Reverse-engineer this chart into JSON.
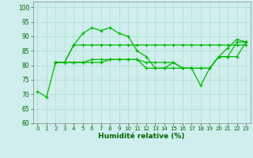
{
  "xlabel": "Humidité relative (%)",
  "xlim": [
    -0.5,
    23.5
  ],
  "ylim": [
    60,
    102
  ],
  "yticks": [
    60,
    65,
    70,
    75,
    80,
    85,
    90,
    95,
    100
  ],
  "xticks": [
    0,
    1,
    2,
    3,
    4,
    5,
    6,
    7,
    8,
    9,
    10,
    11,
    12,
    13,
    14,
    15,
    16,
    17,
    18,
    19,
    20,
    21,
    22,
    23
  ],
  "bg_color": "#d0eeee",
  "grid_color": "#aaddcc",
  "line_color": "#00bb00",
  "line1_x": [
    0,
    1,
    2,
    3,
    4,
    5,
    6,
    7,
    8,
    9,
    10,
    11,
    12,
    13,
    14,
    15,
    16,
    17,
    18,
    19,
    20,
    21,
    22,
    23
  ],
  "line1_y": [
    71,
    69,
    81,
    81,
    87,
    91,
    93,
    92,
    93,
    91,
    90,
    85,
    83,
    79,
    79,
    81,
    79,
    79,
    73,
    79,
    83,
    86,
    89,
    88
  ],
  "line2_x": [
    2,
    3,
    4,
    5,
    6,
    7,
    8,
    9,
    10,
    11,
    12,
    13,
    14,
    15,
    16,
    17,
    18,
    19,
    20,
    21,
    22,
    23
  ],
  "line2_y": [
    81,
    81,
    87,
    87,
    87,
    87,
    87,
    87,
    87,
    87,
    87,
    87,
    87,
    87,
    87,
    87,
    87,
    87,
    87,
    87,
    87,
    87
  ],
  "line3_x": [
    2,
    3,
    4,
    5,
    6,
    7,
    8,
    9,
    10,
    11,
    12,
    13,
    14,
    15,
    16,
    17,
    18,
    19,
    20,
    21,
    22,
    23
  ],
  "line3_y": [
    81,
    81,
    81,
    81,
    82,
    82,
    82,
    82,
    82,
    82,
    81,
    81,
    81,
    81,
    79,
    79,
    79,
    79,
    83,
    83,
    83,
    88
  ],
  "line4_x": [
    2,
    3,
    4,
    5,
    6,
    7,
    8,
    9,
    10,
    11,
    12,
    13,
    14,
    15,
    16,
    17,
    18,
    19,
    20,
    21,
    22,
    23
  ],
  "line4_y": [
    81,
    81,
    81,
    81,
    81,
    81,
    82,
    82,
    82,
    82,
    79,
    79,
    79,
    79,
    79,
    79,
    79,
    79,
    83,
    83,
    88,
    88
  ]
}
